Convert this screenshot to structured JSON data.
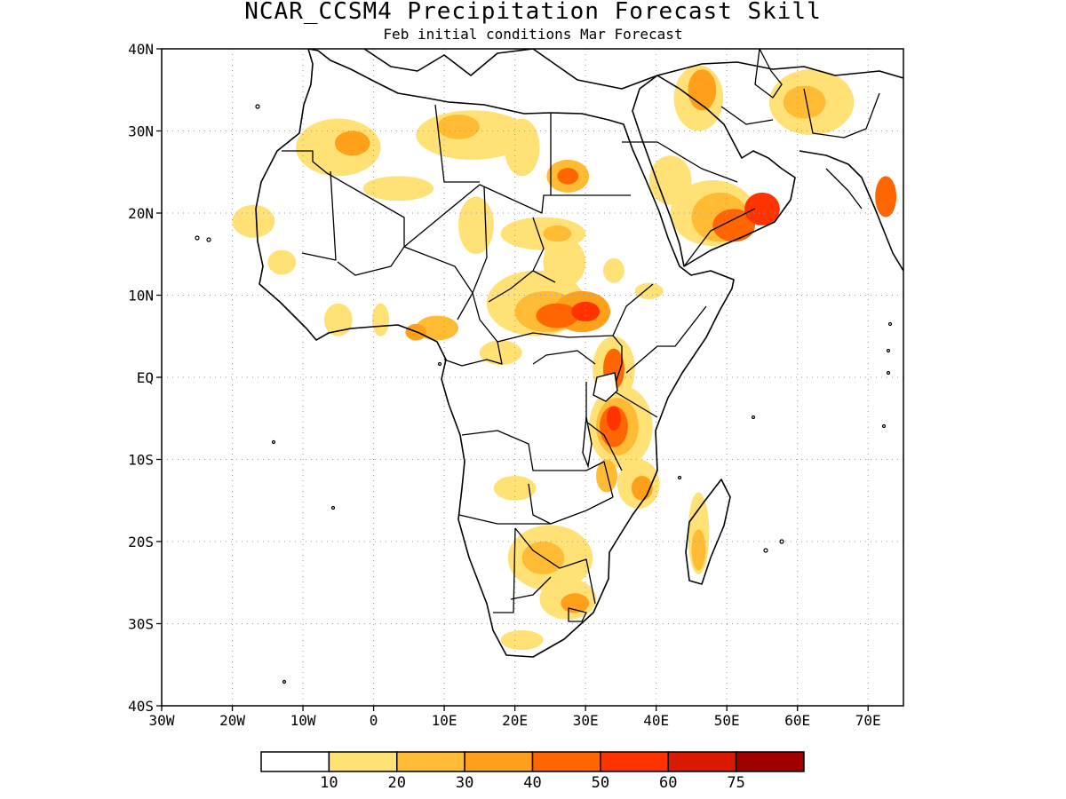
{
  "title": "NCAR_CCSM4 Precipitation Forecast Skill",
  "subtitle": "Feb initial conditions  Mar Forecast",
  "map": {
    "lon_range": [
      -30,
      75
    ],
    "lat_range": [
      -40,
      40
    ],
    "x_ticks": [
      {
        "lon": -30,
        "label": "30W"
      },
      {
        "lon": -20,
        "label": "20W"
      },
      {
        "lon": -10,
        "label": "10W"
      },
      {
        "lon": 0,
        "label": "0"
      },
      {
        "lon": 10,
        "label": "10E"
      },
      {
        "lon": 20,
        "label": "20E"
      },
      {
        "lon": 30,
        "label": "30E"
      },
      {
        "lon": 40,
        "label": "40E"
      },
      {
        "lon": 50,
        "label": "50E"
      },
      {
        "lon": 60,
        "label": "60E"
      },
      {
        "lon": 70,
        "label": "70E"
      }
    ],
    "y_ticks": [
      {
        "lat": 40,
        "label": "40N"
      },
      {
        "lat": 30,
        "label": "30N"
      },
      {
        "lat": 20,
        "label": "20N"
      },
      {
        "lat": 10,
        "label": "10N"
      },
      {
        "lat": 0,
        "label": "EQ"
      },
      {
        "lat": -10,
        "label": "10S"
      },
      {
        "lat": -20,
        "label": "20S"
      },
      {
        "lat": -30,
        "label": "30S"
      },
      {
        "lat": -40,
        "label": "40S"
      }
    ],
    "grid": true
  },
  "colorbar": {
    "colors": [
      "#ffffff",
      "#ffe175",
      "#ffbb33",
      "#ffa01a",
      "#ff6500",
      "#ff3300",
      "#d91a00",
      "#a00000"
    ],
    "labels": [
      "10",
      "20",
      "30",
      "40",
      "50",
      "60",
      "75"
    ]
  },
  "skill_regions": [
    {
      "lon": -5,
      "lat": 28,
      "rx": 6,
      "ry": 3.5,
      "level": 1
    },
    {
      "lon": -3,
      "lat": 28.5,
      "rx": 2.5,
      "ry": 1.5,
      "level": 3
    },
    {
      "lon": 14,
      "lat": 29.5,
      "rx": 8,
      "ry": 3,
      "level": 1
    },
    {
      "lon": 12,
      "lat": 30.5,
      "rx": 3,
      "ry": 1.5,
      "level": 2
    },
    {
      "lon": 21,
      "lat": 28,
      "rx": 2.5,
      "ry": 3.5,
      "level": 1
    },
    {
      "lon": 27.5,
      "lat": 24.5,
      "rx": 3,
      "ry": 2,
      "level": 2
    },
    {
      "lon": 27.5,
      "lat": 24.5,
      "rx": 1.5,
      "ry": 1,
      "level": 4
    },
    {
      "lon": 3.5,
      "lat": 23,
      "rx": 5,
      "ry": 1.5,
      "level": 1
    },
    {
      "lon": -17,
      "lat": 19,
      "rx": 3,
      "ry": 2,
      "level": 1
    },
    {
      "lon": -13,
      "lat": 14,
      "rx": 2,
      "ry": 1.5,
      "level": 1
    },
    {
      "lon": 14.5,
      "lat": 18.5,
      "rx": 2.5,
      "ry": 3.5,
      "level": 1
    },
    {
      "lon": 24,
      "lat": 17.5,
      "rx": 6,
      "ry": 2,
      "level": 1
    },
    {
      "lon": 26,
      "lat": 17.5,
      "rx": 2,
      "ry": 1,
      "level": 2
    },
    {
      "lon": 27,
      "lat": 14,
      "rx": 3,
      "ry": 3,
      "level": 1
    },
    {
      "lon": 34,
      "lat": 13,
      "rx": 1.5,
      "ry": 1.5,
      "level": 1
    },
    {
      "lon": 23,
      "lat": 9,
      "rx": 7,
      "ry": 4,
      "level": 1
    },
    {
      "lon": 24.5,
      "lat": 8,
      "rx": 4.5,
      "ry": 2.5,
      "level": 2
    },
    {
      "lon": 26,
      "lat": 7.5,
      "rx": 3,
      "ry": 1.5,
      "level": 4
    },
    {
      "lon": 29.5,
      "lat": 8,
      "rx": 4,
      "ry": 2.5,
      "level": 3
    },
    {
      "lon": 30,
      "lat": 8,
      "rx": 2,
      "ry": 1.2,
      "level": 5
    },
    {
      "lon": 9,
      "lat": 6,
      "rx": 3,
      "ry": 1.5,
      "level": 2
    },
    {
      "lon": 6,
      "lat": 5.5,
      "rx": 1.5,
      "ry": 1,
      "level": 3
    },
    {
      "lon": -5,
      "lat": 7,
      "rx": 2,
      "ry": 2,
      "level": 1
    },
    {
      "lon": 1,
      "lat": 7,
      "rx": 1.2,
      "ry": 2,
      "level": 1
    },
    {
      "lon": 18,
      "lat": 3,
      "rx": 3,
      "ry": 1.5,
      "level": 1
    },
    {
      "lon": 34,
      "lat": 1,
      "rx": 3,
      "ry": 4,
      "level": 1
    },
    {
      "lon": 34,
      "lat": 1,
      "rx": 1.5,
      "ry": 2.5,
      "level": 4
    },
    {
      "lon": 35,
      "lat": -6,
      "rx": 4.5,
      "ry": 5,
      "level": 1
    },
    {
      "lon": 34.5,
      "lat": -6,
      "rx": 3,
      "ry": 3.5,
      "level": 2
    },
    {
      "lon": 34,
      "lat": -6,
      "rx": 2,
      "ry": 2.5,
      "level": 4
    },
    {
      "lon": 34,
      "lat": -5,
      "rx": 1,
      "ry": 1.5,
      "level": 5
    },
    {
      "lon": 37.5,
      "lat": -13,
      "rx": 3,
      "ry": 3,
      "level": 1
    },
    {
      "lon": 38,
      "lat": -13.5,
      "rx": 1.5,
      "ry": 1.5,
      "level": 3
    },
    {
      "lon": 20,
      "lat": -13.5,
      "rx": 3,
      "ry": 1.5,
      "level": 1
    },
    {
      "lon": 33,
      "lat": -12,
      "rx": 1.5,
      "ry": 2,
      "level": 2
    },
    {
      "lon": 25,
      "lat": -22,
      "rx": 6,
      "ry": 4,
      "level": 1
    },
    {
      "lon": 24,
      "lat": -22,
      "rx": 3,
      "ry": 2,
      "level": 2
    },
    {
      "lon": 27.5,
      "lat": -27,
      "rx": 4,
      "ry": 2.5,
      "level": 1
    },
    {
      "lon": 28.5,
      "lat": -27.5,
      "rx": 2,
      "ry": 1.2,
      "level": 3
    },
    {
      "lon": 21,
      "lat": -32,
      "rx": 3,
      "ry": 1.2,
      "level": 1
    },
    {
      "lon": 46,
      "lat": -19,
      "rx": 1.5,
      "ry": 5,
      "level": 1
    },
    {
      "lon": 46,
      "lat": -21,
      "rx": 1,
      "ry": 2.5,
      "level": 2
    },
    {
      "lon": 42,
      "lat": 24,
      "rx": 3,
      "ry": 3,
      "level": 1
    },
    {
      "lon": 48,
      "lat": 20,
      "rx": 6,
      "ry": 4,
      "level": 1
    },
    {
      "lon": 49,
      "lat": 19.5,
      "rx": 4,
      "ry": 3,
      "level": 2
    },
    {
      "lon": 51,
      "lat": 18.5,
      "rx": 3,
      "ry": 2,
      "level": 4
    },
    {
      "lon": 55,
      "lat": 20.5,
      "rx": 2.5,
      "ry": 2,
      "level": 5
    },
    {
      "lon": 46,
      "lat": 34,
      "rx": 3.5,
      "ry": 4,
      "level": 1
    },
    {
      "lon": 46.5,
      "lat": 35,
      "rx": 2,
      "ry": 2.5,
      "level": 3
    },
    {
      "lon": 62,
      "lat": 33.5,
      "rx": 6,
      "ry": 4,
      "level": 1
    },
    {
      "lon": 61,
      "lat": 33.5,
      "rx": 3,
      "ry": 2,
      "level": 2
    },
    {
      "lon": 72.5,
      "lat": 22,
      "rx": 1.5,
      "ry": 2.5,
      "level": 4
    },
    {
      "lon": 39,
      "lat": 10.5,
      "rx": 2,
      "ry": 1,
      "level": 1
    }
  ]
}
